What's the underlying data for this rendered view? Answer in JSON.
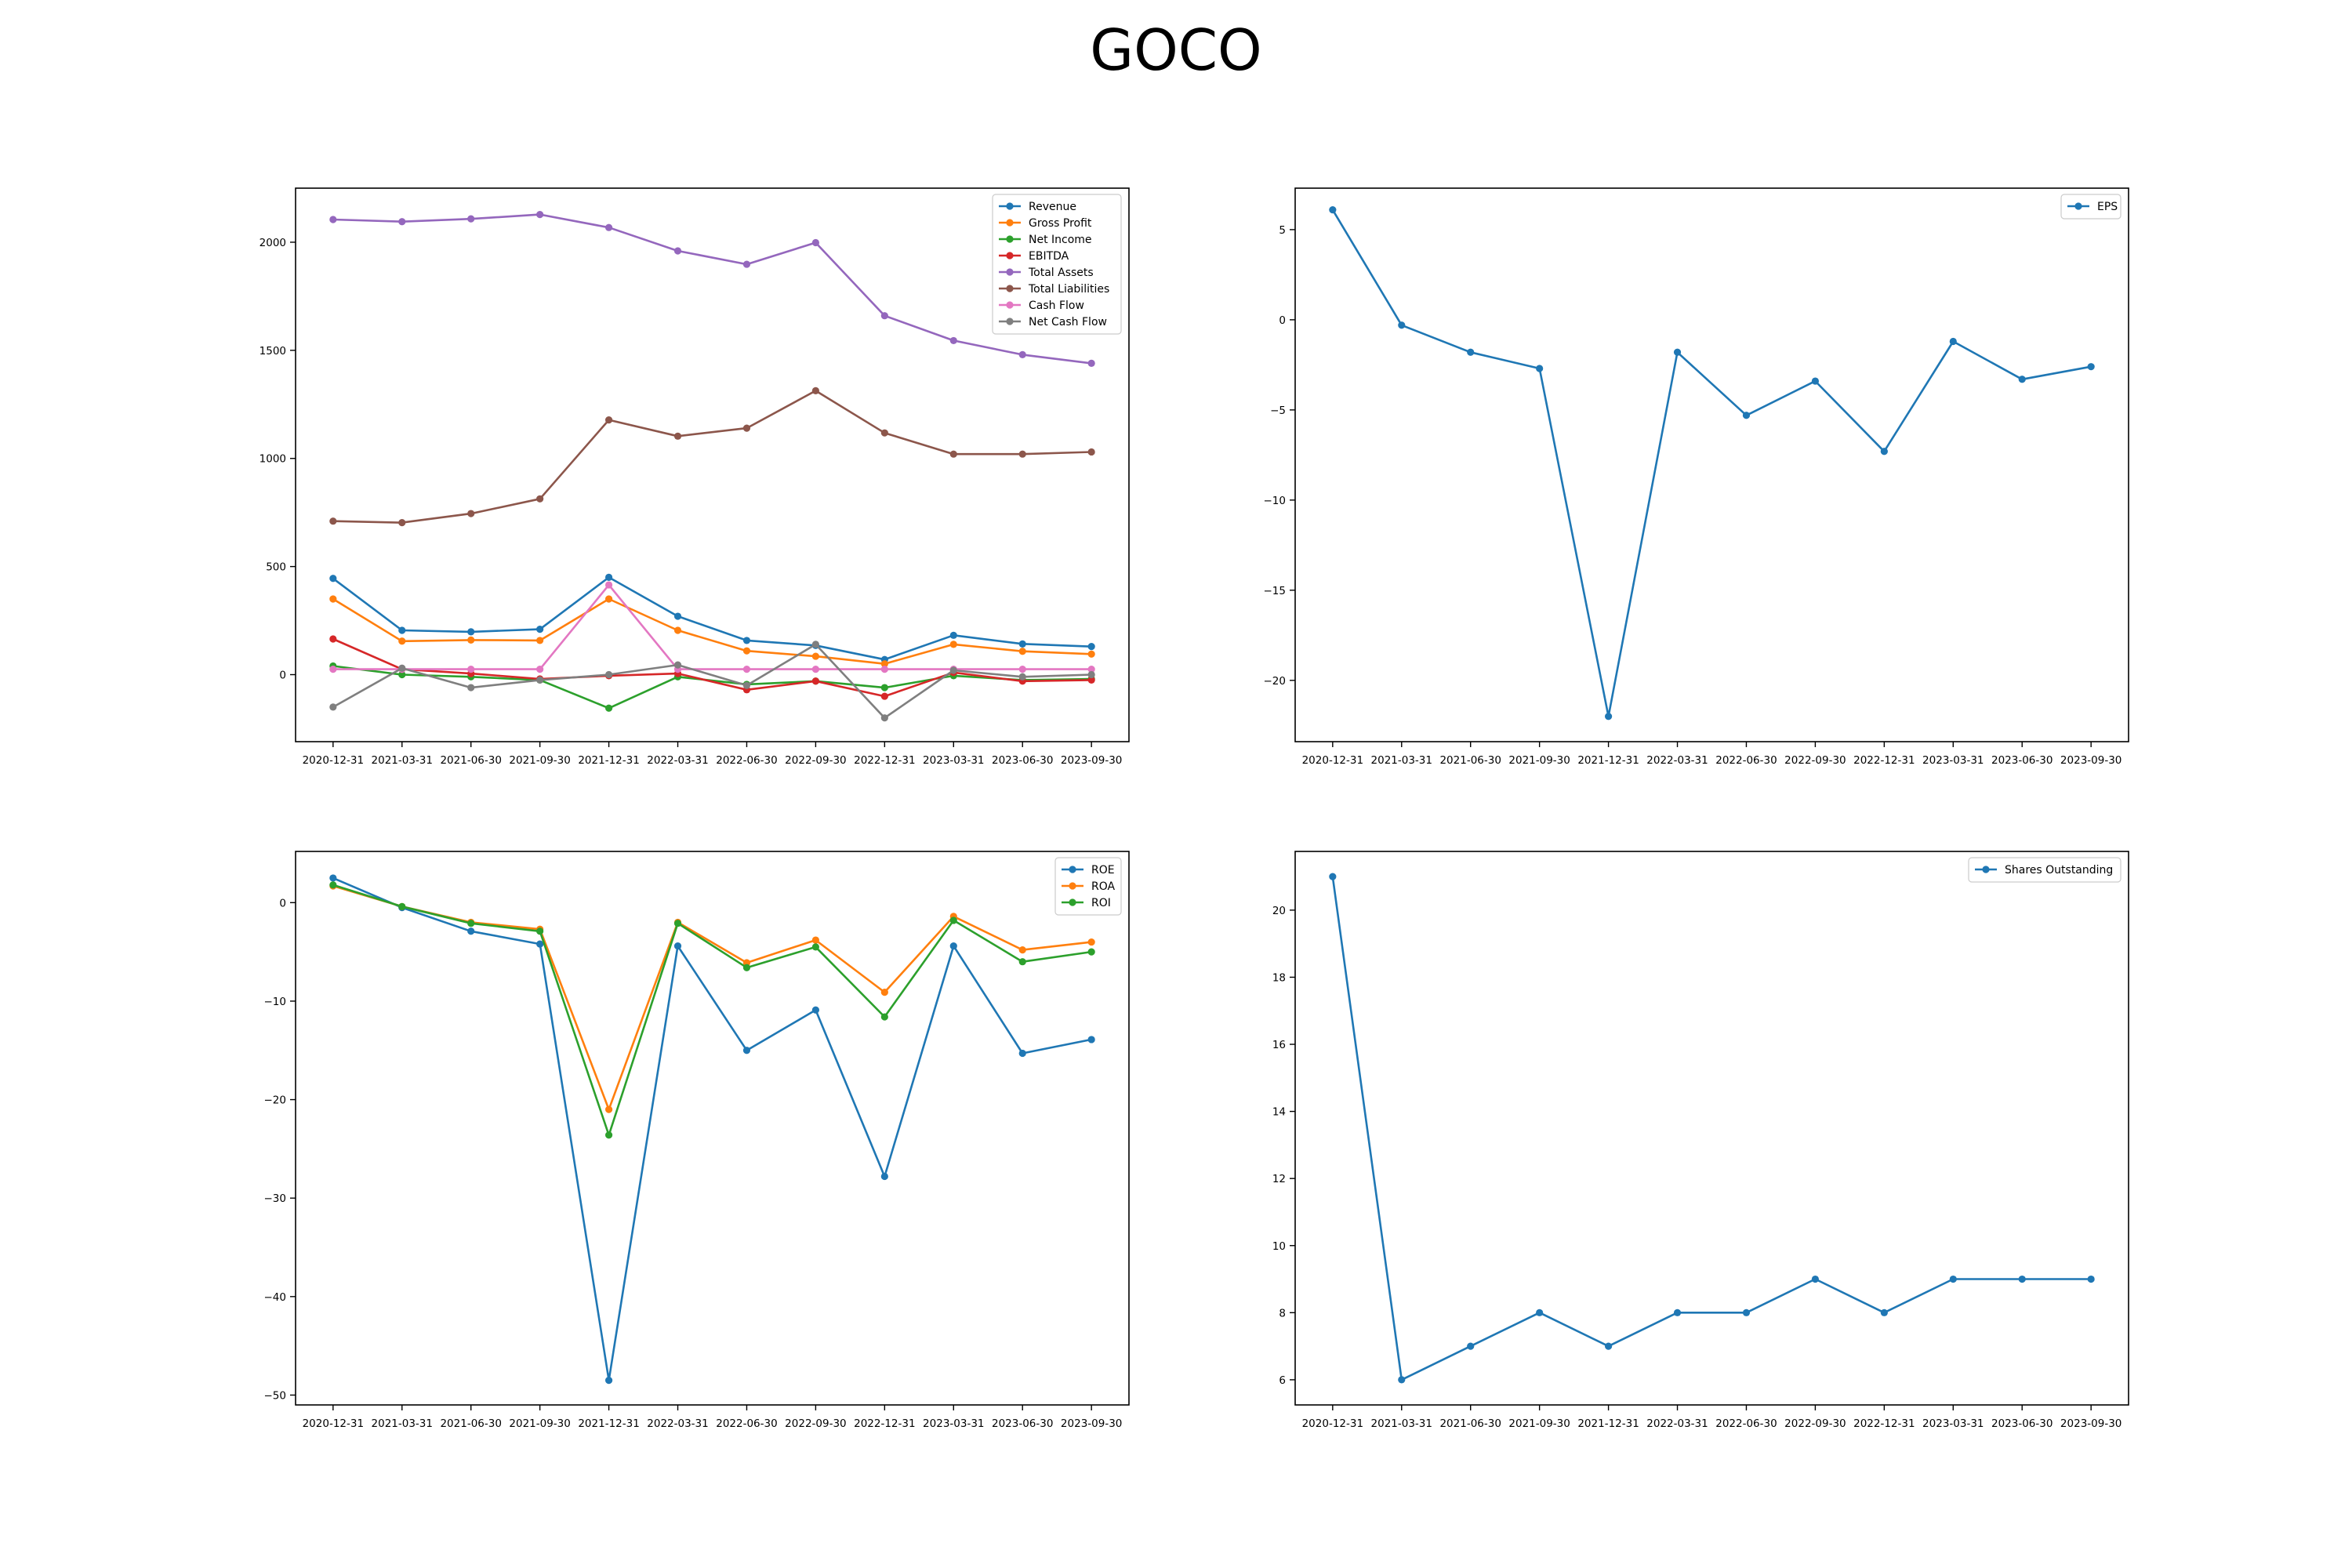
{
  "title": "GOCO",
  "colors": {
    "blue": "#1f77b4",
    "orange": "#ff7f0e",
    "green": "#2ca02c",
    "red": "#d62728",
    "purple": "#9467bd",
    "brown": "#8c564b",
    "pink": "#e377c2",
    "gray": "#7f7f7f"
  },
  "chart_data": [
    {
      "id": "financials",
      "type": "line",
      "title": "",
      "xlabel": "",
      "ylabel": "",
      "categories": [
        "2020-12-31",
        "2021-03-31",
        "2021-06-30",
        "2021-09-30",
        "2021-12-31",
        "2022-03-31",
        "2022-06-30",
        "2022-09-30",
        "2022-12-31",
        "2023-03-31",
        "2023-06-30",
        "2023-09-30"
      ],
      "ylim": [
        -310,
        2250
      ],
      "yticks": [
        0,
        500,
        1000,
        1500,
        2000
      ],
      "grid": false,
      "legend": "top-right",
      "series": [
        {
          "name": "Revenue",
          "color": "#1f77b4",
          "values": [
            445,
            205,
            198,
            210,
            450,
            270,
            158,
            135,
            70,
            182,
            142,
            130
          ]
        },
        {
          "name": "Gross Profit",
          "color": "#ff7f0e",
          "values": [
            350,
            155,
            160,
            158,
            350,
            205,
            110,
            85,
            50,
            140,
            108,
            95
          ]
        },
        {
          "name": "Net Income",
          "color": "#2ca02c",
          "values": [
            40,
            0,
            -10,
            -25,
            -155,
            -10,
            -45,
            -30,
            -60,
            -5,
            -25,
            -20
          ]
        },
        {
          "name": "EBITDA",
          "color": "#d62728",
          "values": [
            165,
            25,
            5,
            -20,
            -5,
            5,
            -70,
            -30,
            -100,
            10,
            -30,
            -25
          ]
        },
        {
          "name": "Total Assets",
          "color": "#9467bd",
          "values": [
            2105,
            2095,
            2108,
            2128,
            2068,
            1960,
            1898,
            1998,
            1660,
            1545,
            1480,
            1440
          ]
        },
        {
          "name": "Total Liabilities",
          "color": "#8c564b",
          "values": [
            710,
            703,
            745,
            813,
            1178,
            1103,
            1140,
            1313,
            1118,
            1020,
            1020,
            1030
          ]
        },
        {
          "name": "Cash Flow",
          "color": "#e377c2",
          "values": [
            25,
            25,
            25,
            25,
            415,
            25,
            25,
            25,
            25,
            25,
            25,
            25
          ]
        },
        {
          "name": "Net Cash Flow",
          "color": "#7f7f7f",
          "values": [
            -150,
            30,
            -60,
            -25,
            0,
            45,
            -50,
            140,
            -200,
            20,
            -10,
            0
          ]
        }
      ]
    },
    {
      "id": "eps",
      "type": "line",
      "title": "",
      "xlabel": "",
      "ylabel": "",
      "categories": [
        "2020-12-31",
        "2021-03-31",
        "2021-06-30",
        "2021-09-30",
        "2021-12-31",
        "2022-03-31",
        "2022-06-30",
        "2022-09-30",
        "2022-12-31",
        "2023-03-31",
        "2023-06-30",
        "2023-09-30"
      ],
      "ylim": [
        -23.4,
        7.3
      ],
      "yticks": [
        5,
        0,
        -5,
        -10,
        -15,
        -20
      ],
      "grid": false,
      "legend": "top-right",
      "series": [
        {
          "name": "EPS",
          "color": "#1f77b4",
          "values": [
            6.1,
            -0.3,
            -1.8,
            -2.7,
            -22.0,
            -1.8,
            -5.3,
            -3.4,
            -7.3,
            -1.2,
            -3.3,
            -2.6
          ]
        }
      ]
    },
    {
      "id": "ratios",
      "type": "line",
      "title": "",
      "xlabel": "",
      "ylabel": "",
      "categories": [
        "2020-12-31",
        "2021-03-31",
        "2021-06-30",
        "2021-09-30",
        "2021-12-31",
        "2022-03-31",
        "2022-06-30",
        "2022-09-30",
        "2022-12-31",
        "2023-03-31",
        "2023-06-30",
        "2023-09-30"
      ],
      "ylim": [
        -51,
        5.2
      ],
      "yticks": [
        0,
        -10,
        -20,
        -30,
        -40,
        -50
      ],
      "grid": false,
      "legend": "top-right",
      "series": [
        {
          "name": "ROE",
          "color": "#1f77b4",
          "values": [
            2.5,
            -0.5,
            -2.9,
            -4.2,
            -48.5,
            -4.4,
            -15.0,
            -10.9,
            -27.8,
            -4.4,
            -15.3,
            -13.9
          ]
        },
        {
          "name": "ROA",
          "color": "#ff7f0e",
          "values": [
            1.7,
            -0.4,
            -2.0,
            -2.7,
            -21.0,
            -2.0,
            -6.1,
            -3.8,
            -9.1,
            -1.4,
            -4.8,
            -4.0
          ]
        },
        {
          "name": "ROI",
          "color": "#2ca02c",
          "values": [
            1.8,
            -0.4,
            -2.1,
            -2.9,
            -23.6,
            -2.1,
            -6.6,
            -4.5,
            -11.6,
            -1.8,
            -6.0,
            -5.0
          ]
        }
      ]
    },
    {
      "id": "shares",
      "type": "line",
      "title": "",
      "xlabel": "",
      "ylabel": "",
      "categories": [
        "2020-12-31",
        "2021-03-31",
        "2021-06-30",
        "2021-09-30",
        "2021-12-31",
        "2022-03-31",
        "2022-06-30",
        "2022-09-30",
        "2022-12-31",
        "2023-03-31",
        "2023-06-30",
        "2023-09-30"
      ],
      "ylim": [
        5.25,
        21.75
      ],
      "yticks": [
        6,
        8,
        10,
        12,
        14,
        16,
        18,
        20
      ],
      "grid": false,
      "legend": "top-right",
      "series": [
        {
          "name": "Shares Outstanding",
          "color": "#1f77b4",
          "values": [
            21,
            6,
            7,
            8,
            7,
            8,
            8,
            9,
            8,
            9,
            9,
            9
          ]
        }
      ]
    }
  ]
}
